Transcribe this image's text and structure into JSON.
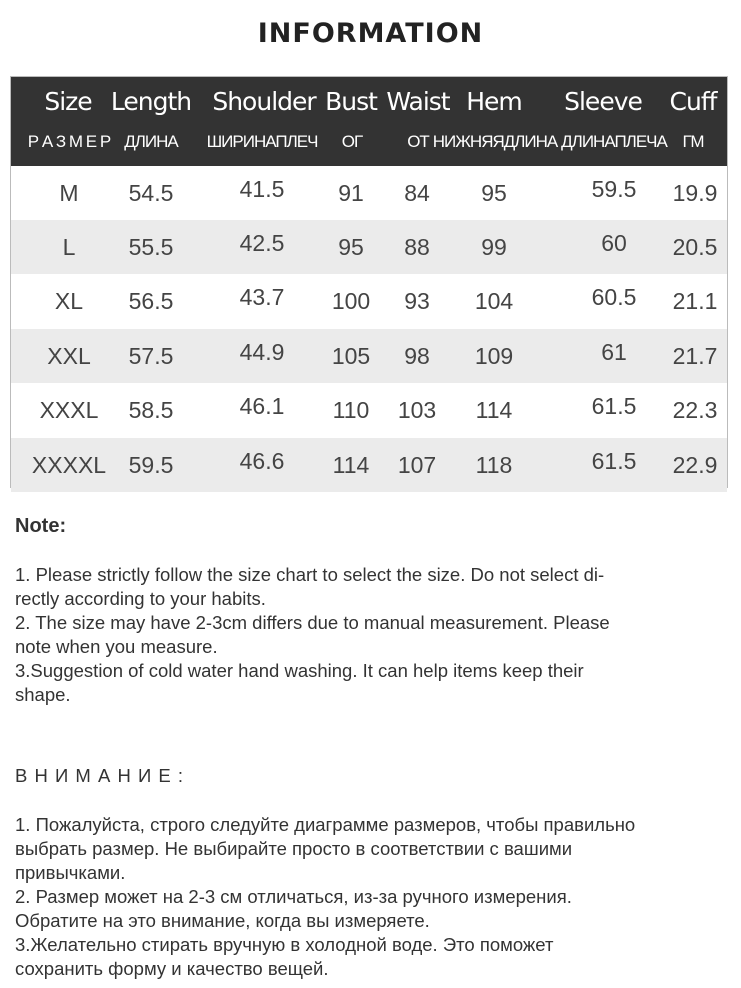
{
  "title": "INFORMATION",
  "table": {
    "headers": [
      "Size",
      "Length",
      "Shoulder",
      "Bust",
      "Waist",
      "Hem",
      "Sleeve",
      "Cuff"
    ],
    "headers_ru": [
      "Р А З М Е Р",
      "ДЛИНА",
      "ШИРИНАПЛЕЧ",
      "ОГ",
      "ОТ",
      "НИЖНЯЯДЛИНА",
      "ДЛИНАПЛЕЧА",
      "ГМ"
    ],
    "rows": [
      [
        "M",
        "54.5",
        "41.5",
        "91",
        "84",
        "95",
        "59.5",
        "19.9"
      ],
      [
        "L",
        "55.5",
        "42.5",
        "95",
        "88",
        "99",
        "60",
        "20.5"
      ],
      [
        "XL",
        "56.5",
        "43.7",
        "100",
        "93",
        "104",
        "60.5",
        "21.1"
      ],
      [
        "XXL",
        "57.5",
        "44.9",
        "105",
        "98",
        "109",
        "61",
        "21.7"
      ],
      [
        "XXXL",
        "58.5",
        "46.1",
        "110",
        "103",
        "114",
        "61.5",
        "22.3"
      ],
      [
        "XXXXL",
        "59.5",
        "46.6",
        "114",
        "107",
        "118",
        "61.5",
        "22.9"
      ]
    ]
  },
  "note": {
    "heading": "Note:",
    "lines": [
      "1. Please strictly follow the size chart  to select the size. Do not select di-",
      "rectly according to your habits.",
      "2. The size may have 2-3cm differs due to manual measurement. Please",
      "note when you measure.",
      "3.Suggestion of cold water hand washing. It can help items keep their",
      "shape."
    ]
  },
  "note_ru": {
    "heading": "В Н И М А Н И Е :",
    "lines": [
      "1. Пожалуйста, строго следуйте диаграмме размеров, чтобы правильно",
      "выбрать размер. Не выбирайте просто в соответствии с вашими",
      "привычками.",
      "2. Размер может на 2-3 см отличаться, из-за ручного измерения.",
      "Обратите на это внимание, когда вы измеряете.",
      "3.Желательно стирать вручную в холодной воде. Это поможет",
      "сохранить форму и качество вещей."
    ]
  }
}
